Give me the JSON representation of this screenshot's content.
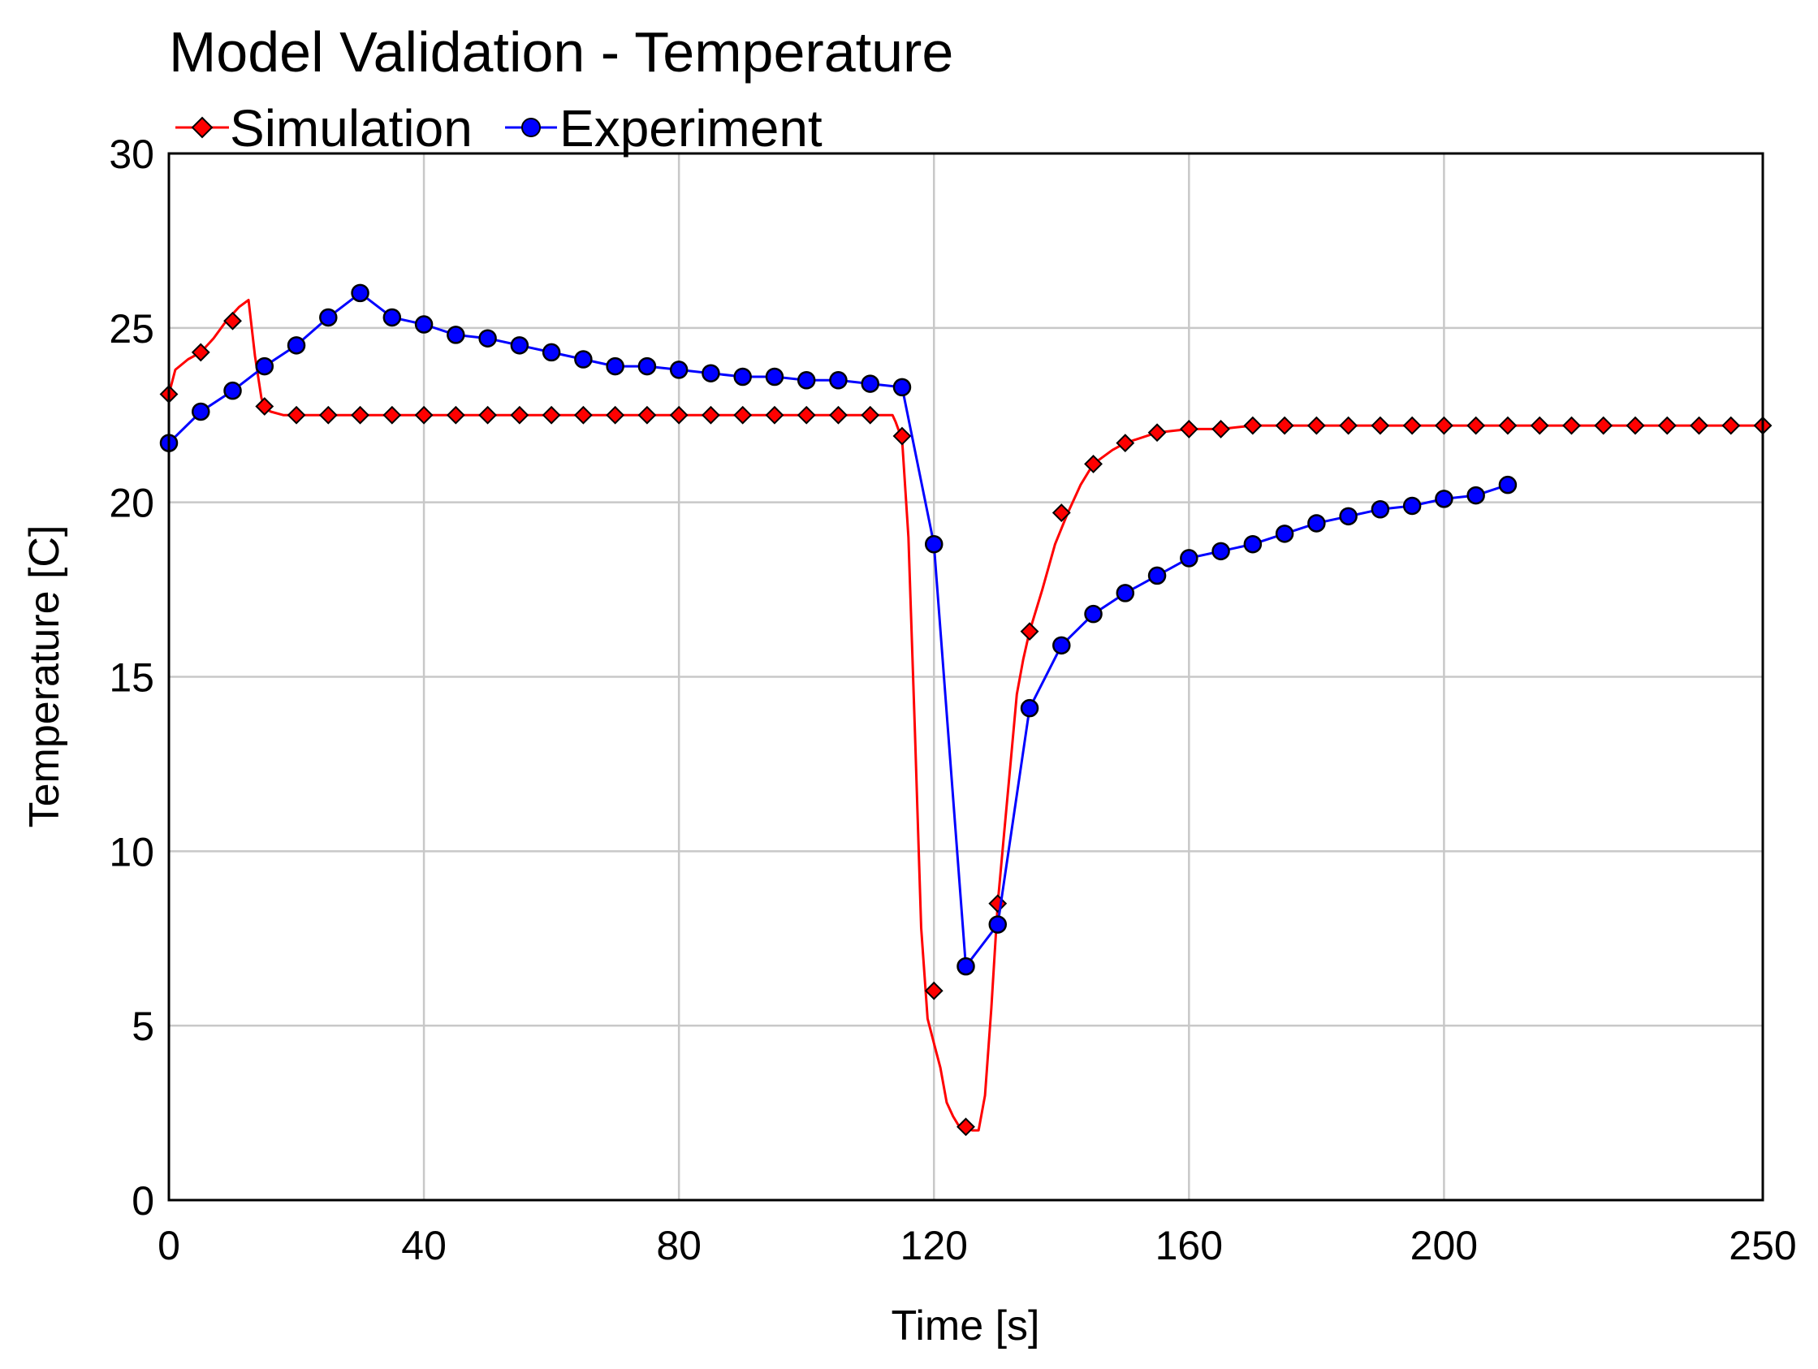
{
  "chart_data": {
    "type": "line",
    "title": "Model Validation - Temperature",
    "xlabel": "Time [s]",
    "ylabel": "Temperature [C]",
    "xlim": [
      0,
      250
    ],
    "ylim": [
      0,
      30
    ],
    "xticks": [
      0,
      40,
      80,
      120,
      160,
      200,
      250
    ],
    "yticks": [
      0,
      5,
      10,
      15,
      20,
      25,
      30
    ],
    "grid": true,
    "legend_position": "top-left",
    "series": [
      {
        "name": "Simulation",
        "color": "#ff0000",
        "marker": "diamond",
        "line_x": [
          0,
          1,
          3,
          5,
          7,
          9,
          11,
          12.5,
          13.5,
          14.5,
          15,
          16,
          18,
          20,
          40,
          60,
          80,
          100,
          110,
          113.5,
          114,
          115,
          116,
          117,
          118,
          119,
          120,
          121,
          122,
          123,
          124,
          125,
          126,
          127,
          128,
          129,
          130,
          131,
          132,
          133,
          134,
          135,
          137,
          139,
          141,
          143,
          145,
          148,
          150,
          155,
          160,
          165,
          170,
          180,
          200,
          220,
          250
        ],
        "line_y": [
          23.1,
          23.8,
          24.1,
          24.3,
          24.7,
          25.2,
          25.6,
          25.8,
          24.2,
          23.0,
          22.7,
          22.6,
          22.5,
          22.5,
          22.5,
          22.5,
          22.5,
          22.5,
          22.5,
          22.5,
          22.3,
          21.8,
          19.0,
          13.5,
          7.8,
          5.2,
          4.5,
          3.8,
          2.8,
          2.4,
          2.1,
          2.05,
          2.0,
          2.0,
          3.0,
          5.5,
          8.5,
          10.5,
          12.5,
          14.5,
          15.5,
          16.3,
          17.5,
          18.8,
          19.7,
          20.5,
          21.1,
          21.5,
          21.7,
          22.0,
          22.1,
          22.1,
          22.2,
          22.2,
          22.2,
          22.2,
          22.2
        ],
        "marker_x": [
          0,
          5,
          10,
          15,
          20,
          25,
          30,
          35,
          40,
          45,
          50,
          55,
          60,
          65,
          70,
          75,
          80,
          85,
          90,
          95,
          100,
          105,
          110,
          115,
          120,
          125,
          130,
          135,
          140,
          145,
          150,
          155,
          160,
          165,
          170,
          175,
          180,
          185,
          190,
          195,
          200,
          205,
          210,
          215,
          220,
          225,
          230,
          235,
          240,
          245,
          250
        ],
        "marker_y": [
          23.1,
          24.3,
          25.2,
          22.75,
          22.5,
          22.5,
          22.5,
          22.5,
          22.5,
          22.5,
          22.5,
          22.5,
          22.5,
          22.5,
          22.5,
          22.5,
          22.5,
          22.5,
          22.5,
          22.5,
          22.5,
          22.5,
          22.5,
          21.9,
          6.0,
          2.1,
          8.5,
          16.3,
          19.7,
          21.1,
          21.7,
          22.0,
          22.1,
          22.1,
          22.2,
          22.2,
          22.2,
          22.2,
          22.2,
          22.2,
          22.2,
          22.2,
          22.2,
          22.2,
          22.2,
          22.2,
          22.2,
          22.2,
          22.2,
          22.2,
          22.2
        ]
      },
      {
        "name": "Experiment",
        "color": "#0000ff",
        "marker": "circle",
        "line_x": [
          0,
          5,
          10,
          15,
          20,
          25,
          30,
          35,
          40,
          45,
          50,
          55,
          60,
          65,
          70,
          75,
          80,
          85,
          90,
          95,
          100,
          105,
          110,
          115,
          120,
          125,
          130,
          135,
          140,
          145,
          150,
          155,
          160,
          165,
          170,
          175,
          180,
          185,
          190,
          195,
          200,
          205,
          210
        ],
        "line_y": [
          21.7,
          22.6,
          23.2,
          23.9,
          24.5,
          25.3,
          26.0,
          25.3,
          25.1,
          24.8,
          24.7,
          24.5,
          24.3,
          24.1,
          23.9,
          23.9,
          23.8,
          23.7,
          23.6,
          23.6,
          23.5,
          23.5,
          23.4,
          23.3,
          18.8,
          6.7,
          7.9,
          14.1,
          15.9,
          16.8,
          17.4,
          17.9,
          18.4,
          18.6,
          18.8,
          19.1,
          19.4,
          19.6,
          19.8,
          19.9,
          20.1,
          20.2,
          20.5
        ],
        "marker_x": [
          0,
          5,
          10,
          15,
          20,
          25,
          30,
          35,
          40,
          45,
          50,
          55,
          60,
          65,
          70,
          75,
          80,
          85,
          90,
          95,
          100,
          105,
          110,
          115,
          120,
          125,
          130,
          135,
          140,
          145,
          150,
          155,
          160,
          165,
          170,
          175,
          180,
          185,
          190,
          195,
          200,
          205,
          210
        ],
        "marker_y": [
          21.7,
          22.6,
          23.2,
          23.9,
          24.5,
          25.3,
          26.0,
          25.3,
          25.1,
          24.8,
          24.7,
          24.5,
          24.3,
          24.1,
          23.9,
          23.9,
          23.8,
          23.7,
          23.6,
          23.6,
          23.5,
          23.5,
          23.4,
          23.3,
          18.8,
          6.7,
          7.9,
          14.1,
          15.9,
          16.8,
          17.4,
          17.9,
          18.4,
          18.6,
          18.8,
          19.1,
          19.4,
          19.6,
          19.8,
          19.9,
          20.1,
          20.2,
          20.5
        ]
      }
    ]
  }
}
